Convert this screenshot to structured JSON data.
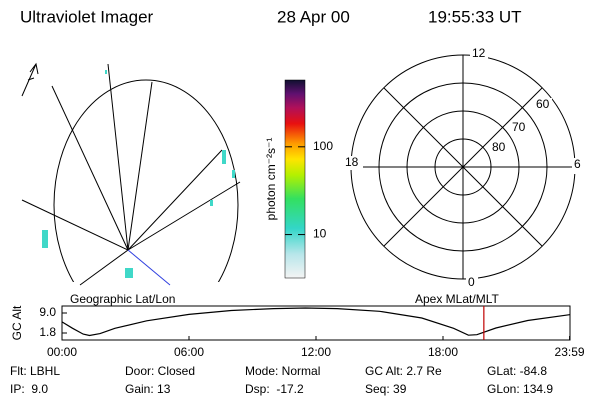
{
  "header": {
    "title": "Ultraviolet Imager",
    "date": "28 Apr 00",
    "time": "19:55:33 UT"
  },
  "colorbar": {
    "label": "photon cm⁻²s⁻¹",
    "lim": [
      3.2,
      577
    ],
    "log": true,
    "ticks": [
      10,
      100
    ]
  },
  "polar": {
    "mlt_labels": [
      "12",
      "6",
      "0",
      "18"
    ],
    "lat_labels": [
      "60",
      "70",
      "80"
    ]
  },
  "captions": {
    "left": "Geographic Lat/Lon",
    "right": "Apex MLat/MLT"
  },
  "altitude": {
    "ylabel": "GC Alt",
    "xlim": [
      0,
      24
    ],
    "ylim": [
      -0.72,
      11.52
    ],
    "yticks": [
      {
        "value": 9.0,
        "label": "9.0"
      },
      1.8
    ],
    "xticks": [
      {
        "value": 0,
        "label": "00:00"
      },
      {
        "value": 6,
        "label": "06:00"
      },
      {
        "value": 12,
        "label": "12:00"
      },
      {
        "value": 18,
        "label": "18:00"
      },
      {
        "value": 23.98,
        "label": "23:59"
      }
    ],
    "x": [
      0,
      0.5,
      1.0,
      1.3,
      1.8,
      2.5,
      4,
      6,
      8,
      10,
      11.5,
      13,
      15,
      17,
      18.5,
      19.2,
      19.6,
      20.5,
      22,
      23.98
    ],
    "values": [
      5.8,
      3.5,
      1.4,
      0.9,
      1.6,
      3.5,
      6.2,
      8.5,
      9.9,
      10.6,
      10.8,
      10.6,
      9.6,
      7.2,
      3.5,
      1.0,
      1.2,
      3.6,
      6.3,
      8.4
    ],
    "current_time": 19.93,
    "current_color": "#c00000"
  },
  "info": {
    "rows": [
      [
        "Flt: LBHL",
        "Door: Closed",
        "Mode: Normal",
        "GC Alt: 2.7 Re",
        "GLat: -84.8"
      ],
      [
        "IP:  9.0",
        "Gain: 13",
        "Dsp:  -17.2",
        "Seq: 39",
        "GLon: 134.9"
      ]
    ]
  }
}
